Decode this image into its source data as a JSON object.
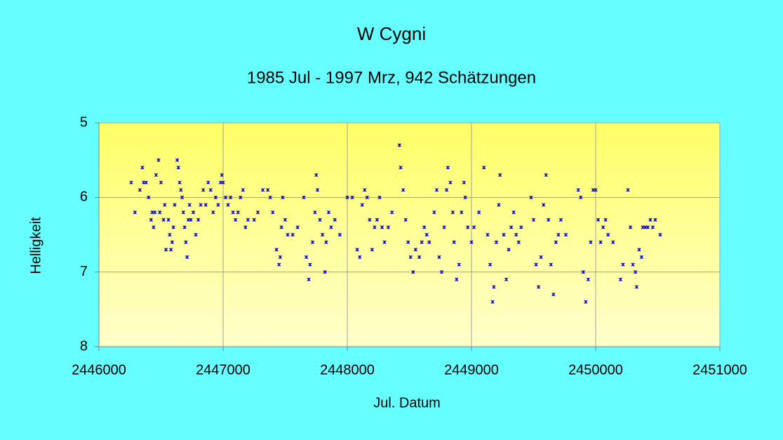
{
  "chart_data": {
    "type": "scatter",
    "title": "W Cygni",
    "subtitle": "1985 Jul -  1997 Mrz, 942 Schätzungen",
    "x_label": "Jul. Datum",
    "y_label": "Helligkeit",
    "color": "#0000cc",
    "grid": true,
    "xlim": [
      2446000,
      2451000
    ],
    "xticks": [
      2446000,
      2447000,
      2448000,
      2449000,
      2450000,
      2451000
    ],
    "ylim": [
      8,
      5
    ],
    "yticks": [
      5,
      6,
      7,
      8
    ],
    "x": [
      2446260,
      2446290,
      2446330,
      2446350,
      2446360,
      2446380,
      2446400,
      2446420,
      2446430,
      2446440,
      2446450,
      2446460,
      2446480,
      2446490,
      2446500,
      2446520,
      2446530,
      2446540,
      2446560,
      2446570,
      2446580,
      2446590,
      2446600,
      2446610,
      2446630,
      2446640,
      2446650,
      2446660,
      2446670,
      2446680,
      2446690,
      2446700,
      2446710,
      2446720,
      2446730,
      2446740,
      2446760,
      2446780,
      2446800,
      2446820,
      2446840,
      2446860,
      2446880,
      2446900,
      2446920,
      2446940,
      2446960,
      2446980,
      2446990,
      2447000,
      2447020,
      2447040,
      2447060,
      2447080,
      2447100,
      2447120,
      2447140,
      2447160,
      2447180,
      2447200,
      2447250,
      2447280,
      2447320,
      2447360,
      2447380,
      2447400,
      2447430,
      2447450,
      2447460,
      2447470,
      2447480,
      2447500,
      2447520,
      2447560,
      2447600,
      2447650,
      2447670,
      2447690,
      2447700,
      2447720,
      2447740,
      2447750,
      2447760,
      2447780,
      2447800,
      2447820,
      2447830,
      2447850,
      2447870,
      2447900,
      2447940,
      2448000,
      2448040,
      2448080,
      2448100,
      2448120,
      2448140,
      2448160,
      2448180,
      2448200,
      2448220,
      2448240,
      2448260,
      2448280,
      2448300,
      2448330,
      2448360,
      2448420,
      2448430,
      2448450,
      2448470,
      2448490,
      2448510,
      2448530,
      2448550,
      2448580,
      2448600,
      2448620,
      2448640,
      2448660,
      2448700,
      2448720,
      2448740,
      2448760,
      2448780,
      2448800,
      2448810,
      2448830,
      2448850,
      2448860,
      2448880,
      2448900,
      2448920,
      2448940,
      2448950,
      2448970,
      2449000,
      2449020,
      2449060,
      2449100,
      2449130,
      2449150,
      2449170,
      2449180,
      2449200,
      2449220,
      2449230,
      2449260,
      2449280,
      2449300,
      2449320,
      2449340,
      2449360,
      2449380,
      2449400,
      2449480,
      2449500,
      2449520,
      2449540,
      2449560,
      2449580,
      2449600,
      2449620,
      2449640,
      2449660,
      2449680,
      2449700,
      2449720,
      2449760,
      2449860,
      2449880,
      2449900,
      2449920,
      2449940,
      2449960,
      2449980,
      2450000,
      2450020,
      2450040,
      2450060,
      2450080,
      2450100,
      2450140,
      2450200,
      2450220,
      2450260,
      2450280,
      2450300,
      2450320,
      2450330,
      2450350,
      2450370,
      2450380,
      2450400,
      2450420,
      2450440,
      2450460,
      2450480,
      2450520
    ],
    "values": [
      5.8,
      6.2,
      5.9,
      5.6,
      5.8,
      5.8,
      6.0,
      6.3,
      6.2,
      6.4,
      6.2,
      5.7,
      5.5,
      6.2,
      5.8,
      6.3,
      6.1,
      6.7,
      6.3,
      6.5,
      6.7,
      6.6,
      6.4,
      6.1,
      5.5,
      5.6,
      5.8,
      5.9,
      6.0,
      6.2,
      6.4,
      6.6,
      6.8,
      6.3,
      6.1,
      6.3,
      6.2,
      6.5,
      6.3,
      6.1,
      5.9,
      6.1,
      5.8,
      5.9,
      6.2,
      6.0,
      6.1,
      5.8,
      5.7,
      5.8,
      6.0,
      6.1,
      6.0,
      6.2,
      6.3,
      6.2,
      6.0,
      5.9,
      6.4,
      6.3,
      6.3,
      6.2,
      5.9,
      5.9,
      6.0,
      6.2,
      6.7,
      6.9,
      6.8,
      6.4,
      6.0,
      6.3,
      6.5,
      6.5,
      6.4,
      6.0,
      6.8,
      7.1,
      6.9,
      6.6,
      6.2,
      5.7,
      5.9,
      6.3,
      6.5,
      7.0,
      6.6,
      6.2,
      6.4,
      6.3,
      6.5,
      6.0,
      6.0,
      6.7,
      6.8,
      6.1,
      5.9,
      6.0,
      6.3,
      6.7,
      6.4,
      6.3,
      6.0,
      6.4,
      6.6,
      6.4,
      6.2,
      5.3,
      5.6,
      5.9,
      6.3,
      6.6,
      6.8,
      7.0,
      6.7,
      6.8,
      6.6,
      6.4,
      6.5,
      6.6,
      6.2,
      5.9,
      6.8,
      7.0,
      6.4,
      5.9,
      5.6,
      5.8,
      6.2,
      6.6,
      7.1,
      6.9,
      6.2,
      5.8,
      6.0,
      6.4,
      6.6,
      6.4,
      6.2,
      5.6,
      6.5,
      6.9,
      7.4,
      7.2,
      6.6,
      6.1,
      5.7,
      6.5,
      7.1,
      6.7,
      6.4,
      6.2,
      6.5,
      6.6,
      6.4,
      6.0,
      6.3,
      6.9,
      7.2,
      6.8,
      6.1,
      5.7,
      6.3,
      6.9,
      7.3,
      6.6,
      6.5,
      6.3,
      6.5,
      5.9,
      6.0,
      7.0,
      7.4,
      7.1,
      6.6,
      5.9,
      5.9,
      6.3,
      6.6,
      6.4,
      6.3,
      6.5,
      6.6,
      7.1,
      6.9,
      5.9,
      6.4,
      6.9,
      7.0,
      7.2,
      6.7,
      6.8,
      6.4,
      6.4,
      6.4,
      6.3,
      6.4,
      6.3,
      6.5
    ]
  }
}
